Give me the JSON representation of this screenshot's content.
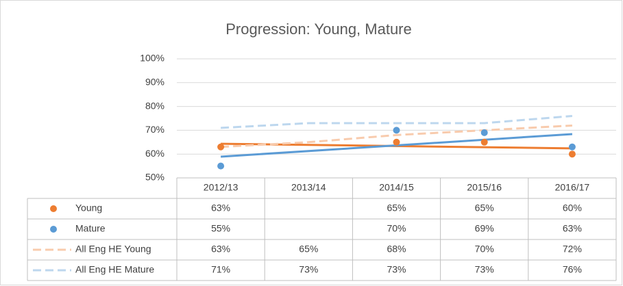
{
  "chart_data": {
    "type": "line",
    "title": "Progression: Young, Mature",
    "categories": [
      "2012/13",
      "2013/14",
      "2014/15",
      "2015/16",
      "2016/17"
    ],
    "series": [
      {
        "name": "Young",
        "color": "#ed7d31",
        "marker": true,
        "trendline": true,
        "dashed": false,
        "values": [
          63,
          null,
          65,
          65,
          60
        ],
        "value_labels": [
          "63%",
          null,
          "65%",
          "65%",
          "60%"
        ]
      },
      {
        "name": "Mature",
        "color": "#5b9bd5",
        "marker": true,
        "trendline": true,
        "dashed": false,
        "values": [
          55,
          null,
          70,
          69,
          63
        ],
        "value_labels": [
          "55%",
          null,
          "70%",
          "69%",
          "63%"
        ]
      },
      {
        "name": "All Eng HE Young",
        "color": "#f8cbad",
        "marker": false,
        "trendline": false,
        "dashed": true,
        "values": [
          63,
          65,
          68,
          70,
          72
        ],
        "value_labels": [
          "63%",
          "65%",
          "68%",
          "70%",
          "72%"
        ]
      },
      {
        "name": "All Eng HE Mature",
        "color": "#bdd7ee",
        "marker": false,
        "trendline": false,
        "dashed": true,
        "values": [
          71,
          73,
          73,
          73,
          76
        ],
        "value_labels": [
          "71%",
          "73%",
          "73%",
          "73%",
          "76%"
        ]
      }
    ],
    "ylim": [
      50,
      100
    ],
    "yticks": [
      {
        "value": 50,
        "label": "50%"
      },
      {
        "value": 60,
        "label": "60%"
      },
      {
        "value": 70,
        "label": "70%"
      },
      {
        "value": 80,
        "label": "80%"
      },
      {
        "value": 90,
        "label": "90%"
      },
      {
        "value": 100,
        "label": "100%"
      }
    ],
    "grid": true
  }
}
